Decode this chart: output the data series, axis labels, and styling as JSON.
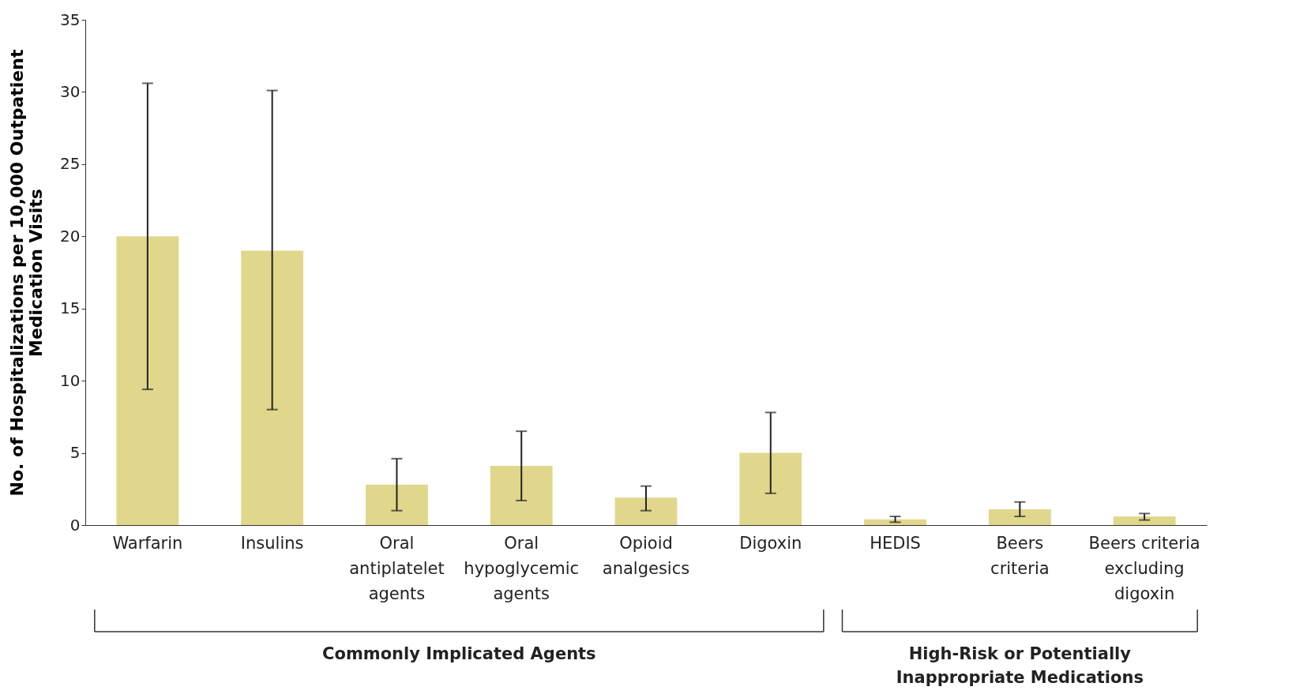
{
  "chart_data": {
    "type": "bar",
    "ylabel": "No. of Hospitalizations per 10,000 Outpatient\nMedication Visits",
    "categories": [
      "Warfarin",
      "Insulins",
      "Oral\nantiplatelet\nagents",
      "Oral\nhypoglycemic\nagents",
      "Opioid\nanalgesics",
      "Digoxin",
      "HEDIS",
      "Beers\ncriteria",
      "Beers criteria\nexcluding\ndigoxin"
    ],
    "values": [
      20.0,
      19.0,
      2.8,
      4.1,
      1.9,
      5.0,
      0.4,
      1.1,
      0.6
    ],
    "errors": [
      [
        9.4,
        30.6
      ],
      [
        8.0,
        30.1
      ],
      [
        1.0,
        4.6
      ],
      [
        1.7,
        6.5
      ],
      [
        1.0,
        2.7
      ],
      [
        2.2,
        7.8
      ],
      [
        0.2,
        0.6
      ],
      [
        0.6,
        1.6
      ],
      [
        0.35,
        0.8
      ]
    ],
    "color": "#e0d78c",
    "ylim": [
      0,
      35
    ],
    "yticks": [
      0,
      5,
      10,
      15,
      20,
      25,
      30,
      35
    ],
    "grid": false,
    "annotations": [
      "Commonly Implicated Agents",
      "High-Risk or Potentially\nInappropriate Medications"
    ]
  }
}
